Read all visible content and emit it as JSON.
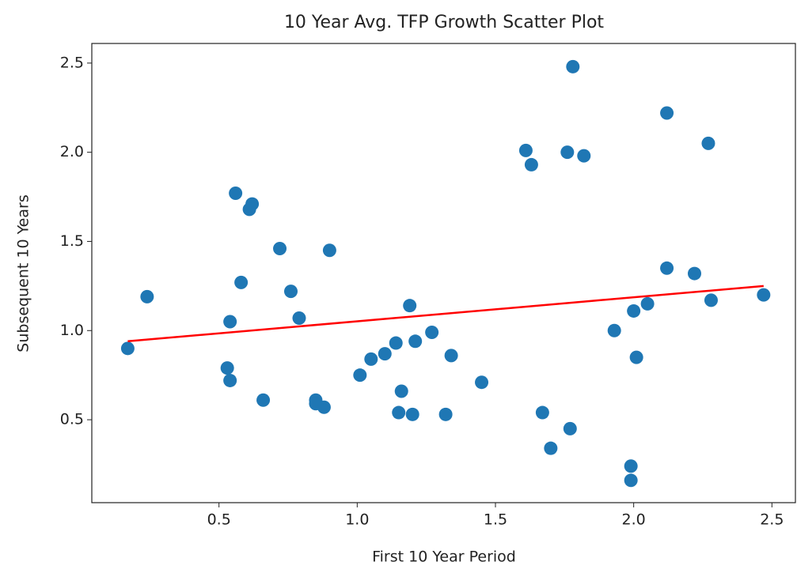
{
  "chart_data": {
    "type": "scatter",
    "title": "10 Year Avg. TFP Growth Scatter Plot",
    "x_label": "First 10 Year Period",
    "y_label": "Subsequent 10 Years",
    "xlim": [
      0.04,
      2.585
    ],
    "ylim": [
      0.035,
      2.61
    ],
    "xticks": [
      0.5,
      {
        "value": 1,
        "label": "1.0"
      },
      1.5,
      {
        "value": 2,
        "label": "2.0"
      },
      2.5
    ],
    "yticks": [
      0.5,
      {
        "value": 1,
        "label": "1.0"
      },
      1.5,
      {
        "value": 2,
        "label": "2.0"
      },
      2.5
    ],
    "series": [
      {
        "color": "#1f77b4",
        "x": [
          0.17,
          0.24,
          0.56,
          0.62,
          0.61,
          0.72,
          0.58,
          0.76,
          0.54,
          0.79,
          0.9,
          0.53,
          0.54,
          0.66,
          0.85,
          0.85,
          0.88,
          1.01,
          1.05,
          1.1,
          1.14,
          1.19,
          1.21,
          1.27,
          1.16,
          1.15,
          1.2,
          1.32,
          1.34,
          1.45,
          1.61,
          1.63,
          1.78,
          1.76,
          1.82,
          1.67,
          1.7,
          1.77,
          1.93,
          2.0,
          2.05,
          2.01,
          1.99,
          1.99,
          2.12,
          2.12,
          2.22,
          2.27,
          2.28,
          2.47
        ],
        "values": [
          0.9,
          1.19,
          1.77,
          1.71,
          1.68,
          1.46,
          1.27,
          1.22,
          1.05,
          1.07,
          1.45,
          0.79,
          0.72,
          0.61,
          0.61,
          0.59,
          0.57,
          0.75,
          0.84,
          0.87,
          0.93,
          1.14,
          0.94,
          0.99,
          0.66,
          0.54,
          0.53,
          0.53,
          0.86,
          0.71,
          2.01,
          1.93,
          2.48,
          2.0,
          1.98,
          0.54,
          0.34,
          0.45,
          1.0,
          1.11,
          1.15,
          0.85,
          0.24,
          0.16,
          2.22,
          1.35,
          1.32,
          2.05,
          1.17,
          1.2
        ]
      }
    ],
    "trend_line": {
      "color": "#ff0000",
      "x": [
        0.17,
        2.47
      ],
      "values": [
        0.94,
        1.25
      ]
    }
  }
}
